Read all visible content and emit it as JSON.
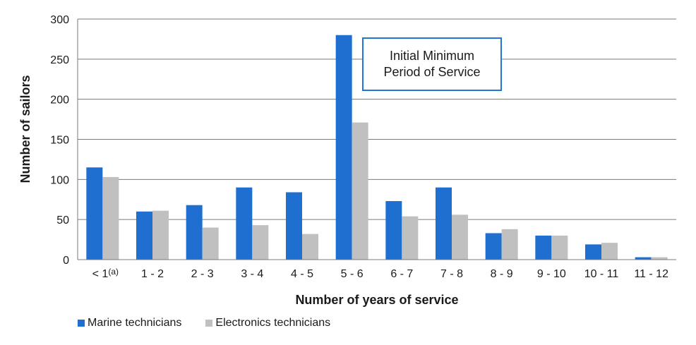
{
  "chart_data": {
    "type": "bar",
    "xlabel": "Number of years of service",
    "ylabel": "Number of sailors",
    "ylim": [
      0,
      300
    ],
    "yticks": [
      0,
      50,
      100,
      150,
      200,
      250,
      300
    ],
    "grid": true,
    "legend_position": "bottom-left",
    "categories": [
      "< 1",
      "1 - 2",
      "2 - 3",
      "3 - 4",
      "4 - 5",
      "5 - 6",
      "6 - 7",
      "7 - 8",
      "8 - 9",
      "9 - 10",
      "10 - 11",
      "11 - 12"
    ],
    "first_category_footnote": "(a)",
    "series": [
      {
        "name": "Marine technicians",
        "color": "#1f6fd1",
        "values": [
          115,
          60,
          68,
          90,
          84,
          280,
          73,
          90,
          33,
          30,
          19,
          3
        ]
      },
      {
        "name": "Electronics technicians",
        "color": "#c0c0c0",
        "values": [
          103,
          61,
          40,
          43,
          32,
          171,
          54,
          56,
          38,
          30,
          21,
          3
        ]
      }
    ],
    "annotation": {
      "line1": "Initial Minimum",
      "line2": "Period of Service",
      "border_color": "#2176d2"
    }
  }
}
